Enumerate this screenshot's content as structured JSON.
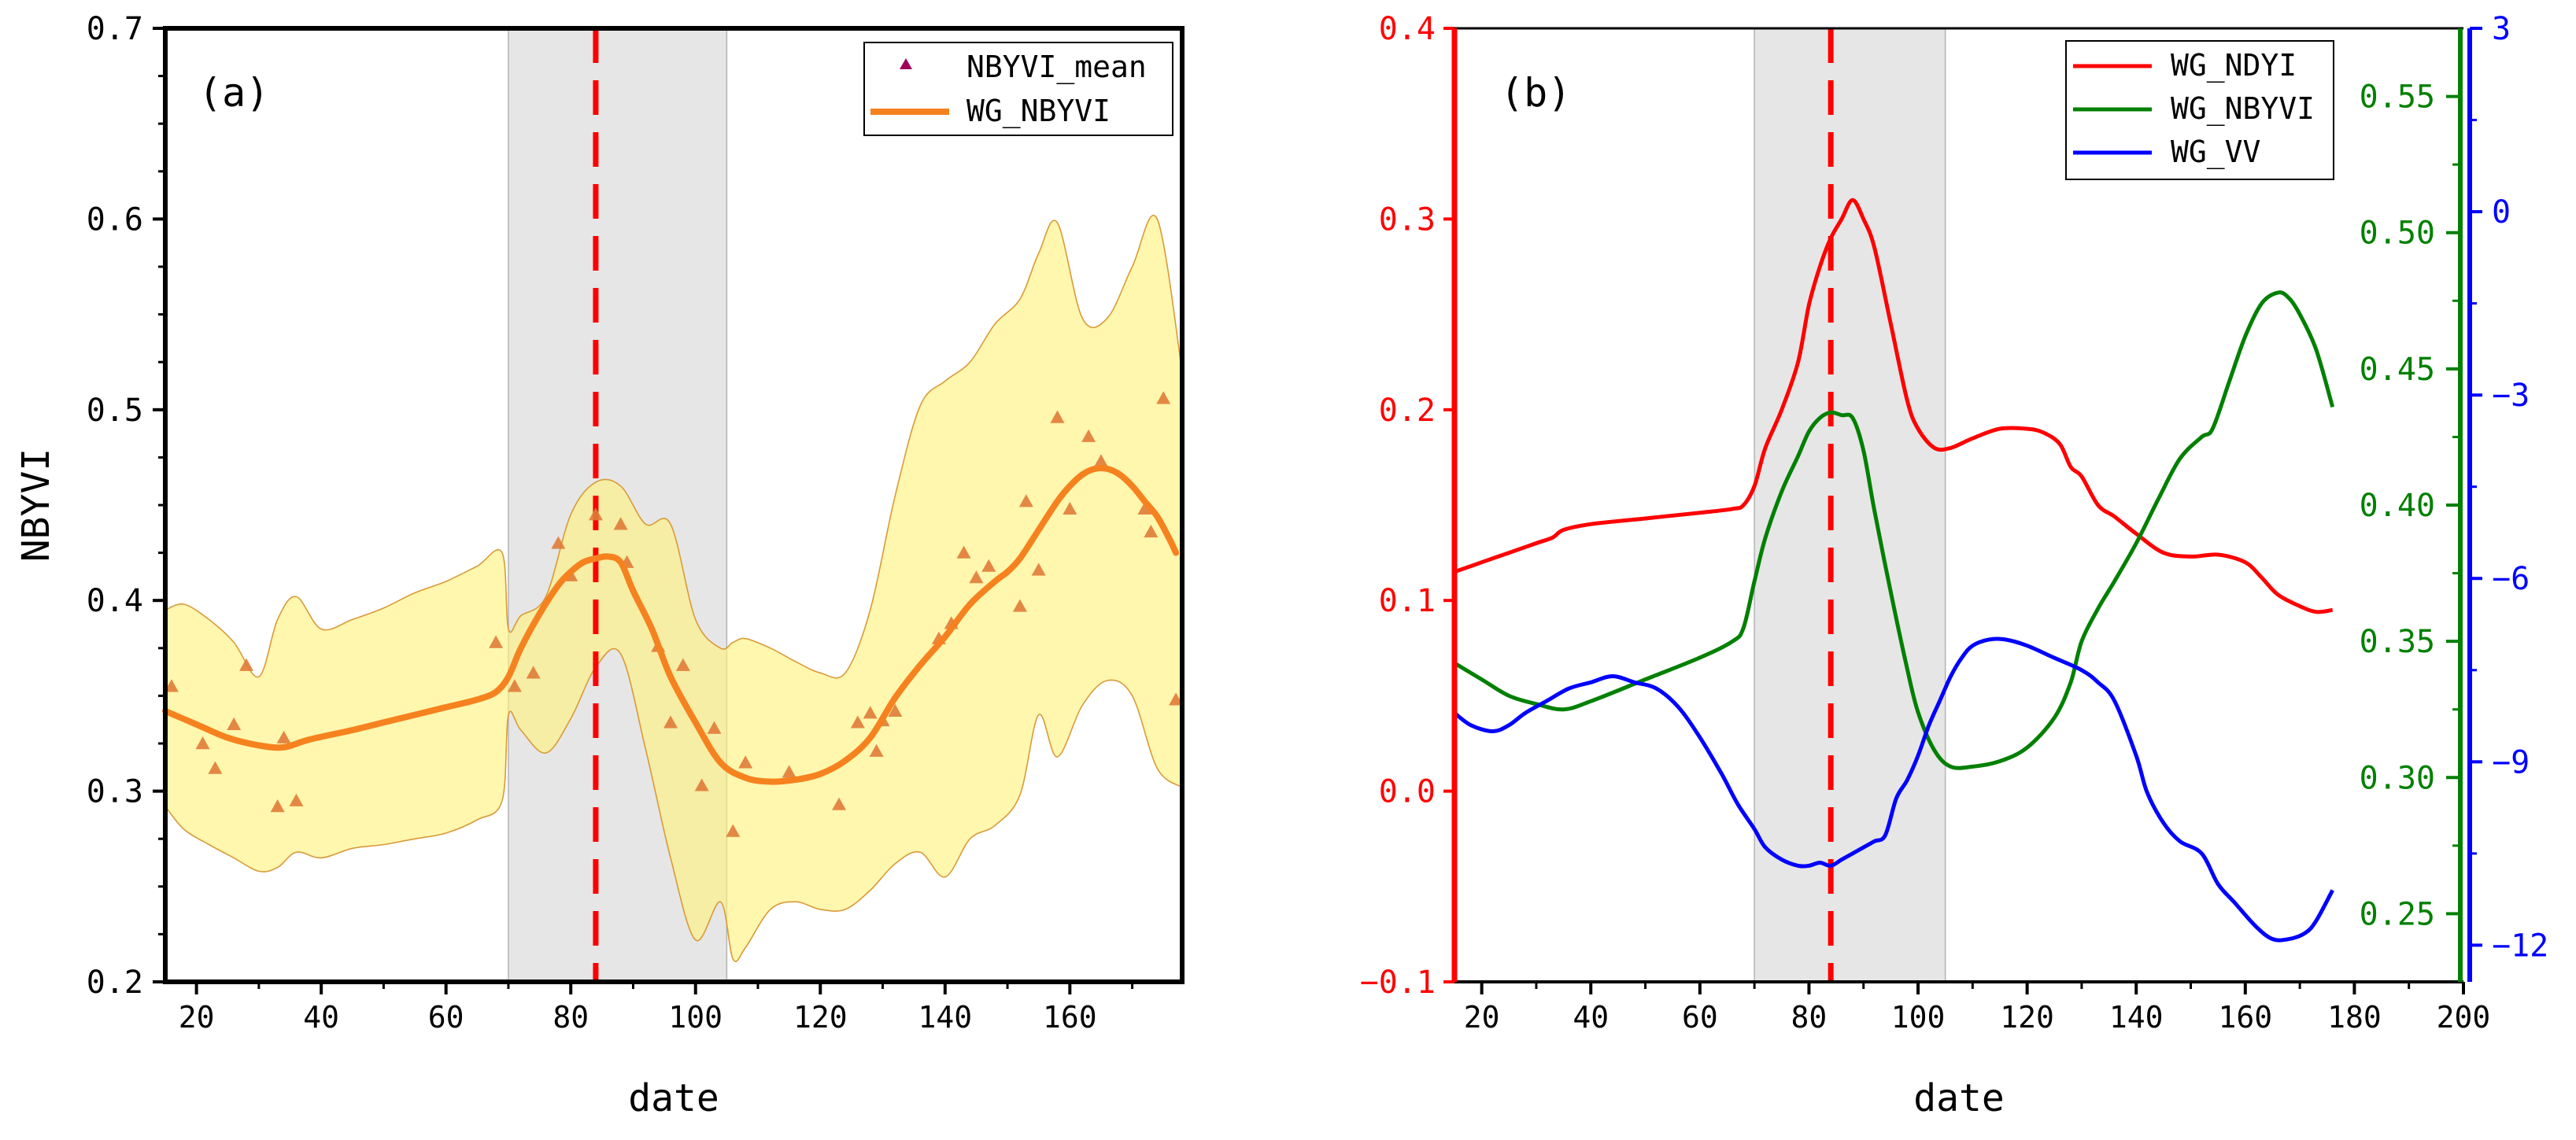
{
  "chart_data": [
    {
      "panel": "a",
      "type": "scatter",
      "panel_label": "(a)",
      "xlabel": "date",
      "ylabel": "NBYVI",
      "xlim": [
        15,
        178
      ],
      "ylim": [
        0.2,
        0.7
      ],
      "x_ticks": [
        20,
        40,
        60,
        80,
        100,
        120,
        140,
        160
      ],
      "x_tick_labels": [
        "20",
        "40",
        "60",
        "80",
        "100",
        "120",
        "140",
        "160"
      ],
      "y_ticks": [
        0.2,
        0.3,
        0.4,
        0.5,
        0.6,
        0.7
      ],
      "y_tick_labels": [
        "0.2",
        "0.3",
        "0.4",
        "0.5",
        "0.6",
        "0.7"
      ],
      "shaded_period": [
        70,
        105
      ],
      "vertical_marker": 84,
      "legend": [
        "NBYVI_mean",
        "WG_NBYVI"
      ],
      "legend_position": "top-right",
      "series": [
        {
          "name": "NBYVI_mean",
          "kind": "triangle-markers",
          "color": "#e07b39",
          "x": [
            16,
            21,
            23,
            26,
            28,
            33,
            34,
            36,
            68,
            71,
            74,
            78,
            80,
            84,
            88,
            89,
            94,
            96,
            98,
            101,
            103,
            106,
            108,
            115,
            123,
            126,
            128,
            129,
            130,
            132,
            139,
            141,
            143,
            145,
            147,
            152,
            153,
            155,
            158,
            160,
            163,
            165,
            172,
            173,
            175,
            177
          ],
          "y": [
            0.355,
            0.325,
            0.312,
            0.335,
            0.366,
            0.292,
            0.328,
            0.295,
            0.378,
            0.355,
            0.362,
            0.43,
            0.413,
            0.445,
            0.44,
            0.42,
            0.376,
            0.336,
            0.366,
            0.303,
            0.333,
            0.279,
            0.315,
            0.31,
            0.293,
            0.336,
            0.341,
            0.321,
            0.337,
            0.342,
            0.38,
            0.388,
            0.425,
            0.412,
            0.418,
            0.397,
            0.452,
            0.416,
            0.496,
            0.448,
            0.486,
            0.473,
            0.448,
            0.436,
            0.506,
            0.348
          ]
        },
        {
          "name": "WG_NBYVI",
          "kind": "line",
          "color": "#f5821f",
          "x": [
            15,
            20,
            25,
            30,
            34,
            38,
            45,
            50,
            55,
            60,
            65,
            68,
            70,
            72,
            75,
            78,
            80,
            82,
            84,
            86,
            88,
            90,
            93,
            96,
            100,
            104,
            108,
            112,
            116,
            120,
            124,
            128,
            132,
            136,
            140,
            144,
            148,
            150,
            152,
            155,
            158,
            160,
            162,
            164,
            166,
            168,
            170,
            172,
            174,
            176,
            177
          ],
          "y": [
            0.342,
            0.335,
            0.328,
            0.324,
            0.323,
            0.327,
            0.332,
            0.336,
            0.34,
            0.344,
            0.348,
            0.352,
            0.36,
            0.375,
            0.393,
            0.408,
            0.415,
            0.42,
            0.422,
            0.423,
            0.42,
            0.405,
            0.385,
            0.36,
            0.336,
            0.315,
            0.307,
            0.305,
            0.306,
            0.309,
            0.316,
            0.328,
            0.349,
            0.366,
            0.381,
            0.398,
            0.41,
            0.415,
            0.422,
            0.437,
            0.452,
            0.46,
            0.466,
            0.469,
            0.469,
            0.466,
            0.46,
            0.452,
            0.444,
            0.432,
            0.425
          ]
        },
        {
          "name": "confidence band",
          "kind": "band",
          "color": "#fff27a",
          "x": [
            15,
            18,
            22,
            26,
            30,
            33,
            36,
            40,
            45,
            50,
            55,
            60,
            65,
            69,
            70,
            72,
            76,
            80,
            84,
            88,
            92,
            96,
            100,
            104,
            106,
            108,
            112,
            116,
            120,
            124,
            128,
            132,
            136,
            140,
            144,
            148,
            152,
            155,
            158,
            162,
            166,
            170,
            174,
            178
          ],
          "upper": [
            0.395,
            0.398,
            0.39,
            0.378,
            0.36,
            0.39,
            0.402,
            0.385,
            0.39,
            0.396,
            0.404,
            0.41,
            0.418,
            0.425,
            0.385,
            0.392,
            0.402,
            0.445,
            0.462,
            0.46,
            0.44,
            0.44,
            0.39,
            0.375,
            0.378,
            0.38,
            0.375,
            0.368,
            0.362,
            0.362,
            0.395,
            0.455,
            0.502,
            0.515,
            0.525,
            0.545,
            0.558,
            0.582,
            0.598,
            0.548,
            0.548,
            0.575,
            0.6,
            0.52
          ],
          "lower": [
            0.292,
            0.28,
            0.272,
            0.265,
            0.258,
            0.26,
            0.268,
            0.265,
            0.27,
            0.272,
            0.275,
            0.278,
            0.285,
            0.295,
            0.34,
            0.332,
            0.32,
            0.338,
            0.365,
            0.372,
            0.322,
            0.265,
            0.222,
            0.242,
            0.212,
            0.218,
            0.238,
            0.242,
            0.238,
            0.238,
            0.248,
            0.262,
            0.268,
            0.255,
            0.275,
            0.282,
            0.298,
            0.34,
            0.318,
            0.345,
            0.358,
            0.35,
            0.312,
            0.302
          ]
        }
      ]
    },
    {
      "panel": "b",
      "type": "line",
      "panel_label": "(b)",
      "xlabel": "date",
      "xlim": [
        15,
        200
      ],
      "x_ticks": [
        20,
        40,
        60,
        80,
        100,
        120,
        140,
        160,
        180,
        200
      ],
      "x_tick_labels": [
        "20",
        "40",
        "60",
        "80",
        "100",
        "120",
        "140",
        "160",
        "180",
        "200"
      ],
      "shaded_period": [
        70,
        105
      ],
      "vertical_marker": 84,
      "legend": [
        "WG_NDYI",
        "WG_NBYVI",
        "WG_VV"
      ],
      "legend_position": "top-right",
      "axes": {
        "left": {
          "series": "WG_NDYI",
          "color": "#ff0000",
          "range": [
            -0.1,
            0.4
          ],
          "ticks": [
            -0.1,
            0.0,
            0.1,
            0.2,
            0.3,
            0.4
          ],
          "tick_labels": [
            "−0.1",
            "0.0",
            "0.1",
            "0.2",
            "0.3",
            "0.4"
          ]
        },
        "right_inner": {
          "series": "WG_NBYVI",
          "color": "#008000",
          "range": [
            0.225,
            0.575
          ],
          "ticks": [
            0.25,
            0.3,
            0.35,
            0.4,
            0.45,
            0.5,
            0.55
          ],
          "tick_labels": [
            "0.25",
            "0.30",
            "0.35",
            "0.40",
            "0.45",
            "0.50",
            "0.55"
          ]
        },
        "right_outer": {
          "series": "WG_VV",
          "color": "#0000ff",
          "range": [
            -12.6,
            3.0
          ],
          "ticks": [
            -12,
            -9,
            -6,
            -3,
            0,
            3
          ],
          "tick_labels": [
            "−12",
            "−9",
            "−6",
            "−3",
            "0",
            "3"
          ]
        }
      },
      "series": [
        {
          "name": "WG_NDYI",
          "axis": "left",
          "color": "#ff0000",
          "x": [
            15,
            20,
            25,
            30,
            33,
            35,
            40,
            50,
            60,
            66,
            68,
            70,
            72,
            75,
            78,
            80,
            82,
            84,
            86,
            88,
            90,
            92,
            95,
            98,
            100,
            103,
            106,
            110,
            115,
            120,
            123,
            126,
            128,
            130,
            133,
            136,
            140,
            145,
            150,
            155,
            160,
            163,
            166,
            170,
            173,
            176
          ],
          "y": [
            0.115,
            0.12,
            0.125,
            0.13,
            0.133,
            0.137,
            0.14,
            0.143,
            0.146,
            0.148,
            0.15,
            0.16,
            0.18,
            0.2,
            0.225,
            0.255,
            0.275,
            0.29,
            0.3,
            0.31,
            0.3,
            0.285,
            0.245,
            0.205,
            0.19,
            0.18,
            0.18,
            0.185,
            0.19,
            0.19,
            0.188,
            0.182,
            0.17,
            0.165,
            0.15,
            0.144,
            0.135,
            0.125,
            0.123,
            0.124,
            0.12,
            0.112,
            0.103,
            0.097,
            0.094,
            0.095
          ]
        },
        {
          "name": "WG_NBYVI",
          "axis": "right_inner",
          "color": "#008000",
          "x": [
            15,
            20,
            25,
            30,
            35,
            40,
            50,
            60,
            66,
            68,
            70,
            72,
            75,
            78,
            80,
            82,
            84,
            86,
            88,
            90,
            92,
            95,
            98,
            100,
            103,
            106,
            110,
            115,
            120,
            125,
            128,
            130,
            133,
            136,
            140,
            144,
            148,
            152,
            154,
            157,
            160,
            163,
            166,
            168,
            170,
            173,
            176
          ],
          "y": [
            0.342,
            0.336,
            0.33,
            0.327,
            0.325,
            0.328,
            0.336,
            0.344,
            0.35,
            0.355,
            0.372,
            0.388,
            0.405,
            0.418,
            0.427,
            0.432,
            0.434,
            0.433,
            0.432,
            0.42,
            0.398,
            0.368,
            0.34,
            0.324,
            0.31,
            0.304,
            0.304,
            0.306,
            0.311,
            0.322,
            0.335,
            0.35,
            0.362,
            0.372,
            0.386,
            0.402,
            0.417,
            0.425,
            0.428,
            0.445,
            0.462,
            0.474,
            0.478,
            0.476,
            0.47,
            0.457,
            0.436
          ]
        },
        {
          "name": "WG_VV",
          "axis": "right_outer",
          "color": "#0000ff",
          "x": [
            15,
            18,
            22,
            25,
            28,
            32,
            36,
            40,
            44,
            48,
            52,
            56,
            60,
            64,
            67,
            70,
            72,
            75,
            78,
            80,
            82,
            84,
            86,
            88,
            90,
            92,
            94,
            96,
            98,
            100,
            102,
            104,
            106,
            108,
            110,
            113,
            116,
            120,
            125,
            130,
            133,
            136,
            140,
            142,
            145,
            148,
            152,
            155,
            158,
            162,
            165,
            168,
            171,
            173,
            176
          ],
          "y": [
            -8.2,
            -8.4,
            -8.5,
            -8.4,
            -8.2,
            -8.0,
            -7.8,
            -7.7,
            -7.6,
            -7.7,
            -7.8,
            -8.1,
            -8.6,
            -9.2,
            -9.7,
            -10.1,
            -10.4,
            -10.6,
            -10.7,
            -10.7,
            -10.65,
            -10.7,
            -10.6,
            -10.5,
            -10.4,
            -10.3,
            -10.2,
            -9.6,
            -9.3,
            -8.9,
            -8.4,
            -8.0,
            -7.6,
            -7.3,
            -7.1,
            -7.0,
            -7.0,
            -7.1,
            -7.3,
            -7.5,
            -7.7,
            -8.0,
            -8.9,
            -9.5,
            -10.0,
            -10.3,
            -10.5,
            -11.0,
            -11.3,
            -11.7,
            -11.9,
            -11.9,
            -11.8,
            -11.6,
            -11.1
          ]
        }
      ]
    }
  ]
}
